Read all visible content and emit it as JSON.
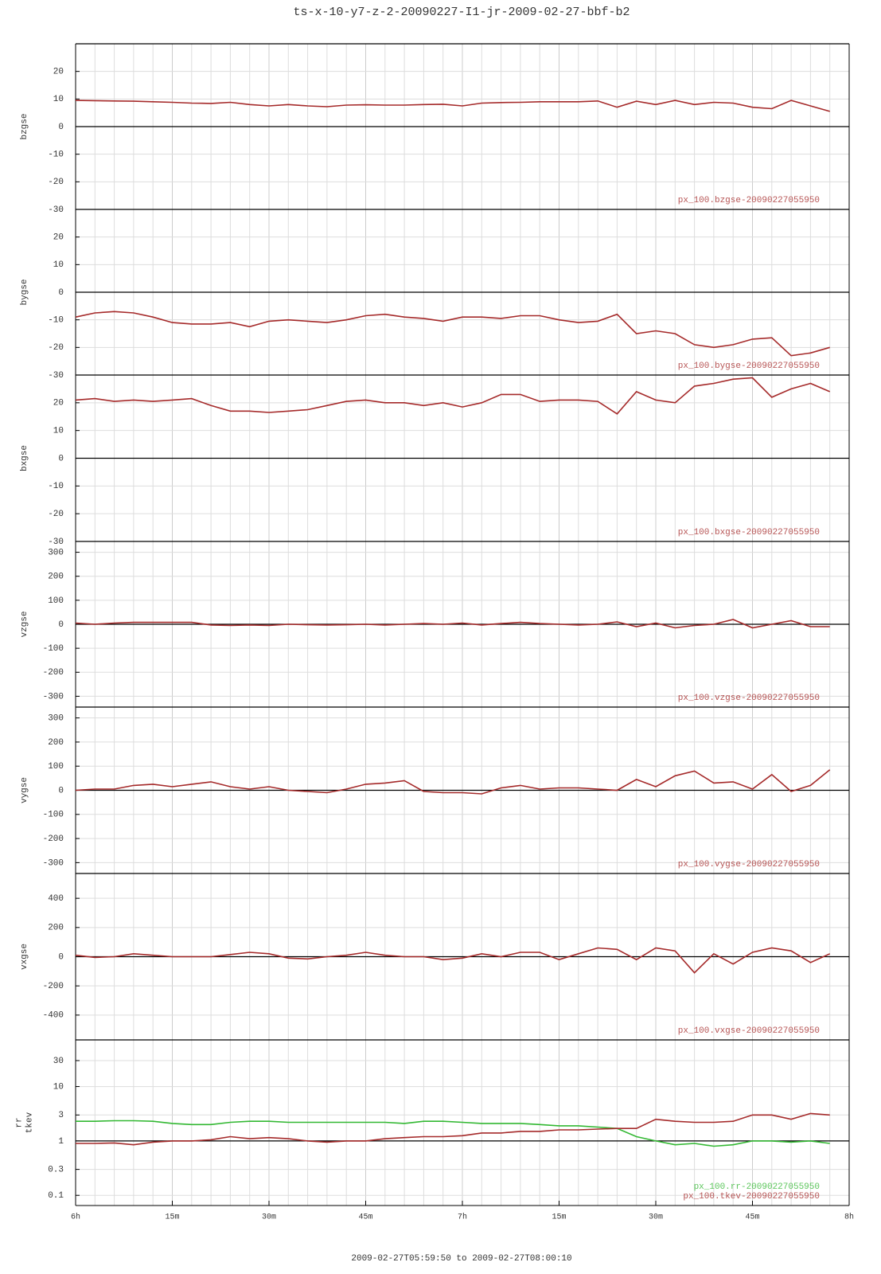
{
  "title": "ts-x-10-y7-z-2-20090227-I1-jr-2009-02-27-bbf-b2",
  "chart_data": [
    {
      "type": "line",
      "ylabel": "bzgse",
      "xlim": [
        0,
        120
      ],
      "ylim": [
        -30,
        30
      ],
      "yticks": [
        20,
        10,
        0,
        -10,
        -20,
        -30
      ],
      "x": [
        0,
        3,
        6,
        9,
        12,
        15,
        18,
        21,
        24,
        27,
        30,
        33,
        36,
        39,
        42,
        45,
        48,
        51,
        54,
        57,
        60,
        63,
        66,
        69,
        72,
        75,
        78,
        81,
        84,
        87,
        90,
        93,
        96,
        99,
        102,
        105,
        108,
        111,
        114,
        117
      ],
      "series": [
        {
          "name": "px_100.bzgse-20090227055950",
          "color": "#a52a2a",
          "values": [
            9.5,
            9.4,
            9.3,
            9.2,
            9.0,
            8.8,
            8.5,
            8.4,
            8.8,
            8.0,
            7.5,
            8.0,
            7.5,
            7.2,
            7.8,
            7.9,
            7.8,
            7.8,
            8.0,
            8.1,
            7.5,
            8.5,
            8.7,
            8.8,
            9.0,
            9.0,
            9.0,
            9.3,
            7.0,
            9.2,
            8.0,
            9.5,
            8.0,
            8.8,
            8.5,
            7.0,
            6.5,
            9.5,
            7.5,
            5.5
          ]
        }
      ]
    },
    {
      "type": "line",
      "ylabel": "bygse",
      "xlim": [
        0,
        120
      ],
      "ylim": [
        -30,
        30
      ],
      "yticks": [
        20,
        10,
        0,
        -10,
        -20,
        -30
      ],
      "x": [
        0,
        3,
        6,
        9,
        12,
        15,
        18,
        21,
        24,
        27,
        30,
        33,
        36,
        39,
        42,
        45,
        48,
        51,
        54,
        57,
        60,
        63,
        66,
        69,
        72,
        75,
        78,
        81,
        84,
        87,
        90,
        93,
        96,
        99,
        102,
        105,
        108,
        111,
        114,
        117
      ],
      "series": [
        {
          "name": "px_100.bygse-20090227055950",
          "color": "#a52a2a",
          "values": [
            -9,
            -7.5,
            -7,
            -7.5,
            -9,
            -11,
            -11.5,
            -11.5,
            -11,
            -12.5,
            -10.5,
            -10,
            -10.5,
            -11,
            -10,
            -8.5,
            -8,
            -9,
            -9.5,
            -10.5,
            -9,
            -9,
            -9.5,
            -8.5,
            -8.5,
            -10,
            -11,
            -10.5,
            -8,
            -15,
            -14,
            -15,
            -19,
            -20,
            -19,
            -17,
            -16.5,
            -23,
            -22,
            -20
          ]
        }
      ]
    },
    {
      "type": "line",
      "ylabel": "bxgse",
      "xlim": [
        0,
        120
      ],
      "ylim": [
        -30,
        30
      ],
      "yticks": [
        20,
        10,
        0,
        -10,
        -20,
        -30
      ],
      "x": [
        0,
        3,
        6,
        9,
        12,
        15,
        18,
        21,
        24,
        27,
        30,
        33,
        36,
        39,
        42,
        45,
        48,
        51,
        54,
        57,
        60,
        63,
        66,
        69,
        72,
        75,
        78,
        81,
        84,
        87,
        90,
        93,
        96,
        99,
        102,
        105,
        108,
        111,
        114,
        117
      ],
      "series": [
        {
          "name": "px_100.bxgse-20090227055950",
          "color": "#a52a2a",
          "values": [
            21,
            21.5,
            20.5,
            21,
            20.5,
            21,
            21.5,
            19,
            17,
            17,
            16.5,
            17,
            17.5,
            19,
            20.5,
            21,
            20,
            20,
            19,
            20,
            18.5,
            20,
            23,
            23,
            20.5,
            21,
            21,
            20.5,
            16,
            24,
            21,
            20,
            26,
            27,
            28.5,
            29,
            22,
            25,
            27,
            24
          ]
        }
      ]
    },
    {
      "type": "line",
      "ylabel": "vzgse",
      "xlim": [
        0,
        120
      ],
      "ylim": [
        -345,
        345
      ],
      "yticks": [
        300,
        200,
        100,
        0,
        -100,
        -200,
        -300
      ],
      "x": [
        0,
        3,
        6,
        9,
        12,
        15,
        18,
        21,
        24,
        27,
        30,
        33,
        36,
        39,
        42,
        45,
        48,
        51,
        54,
        57,
        60,
        63,
        66,
        69,
        72,
        75,
        78,
        81,
        84,
        87,
        90,
        93,
        96,
        99,
        102,
        105,
        108,
        111,
        114,
        117
      ],
      "series": [
        {
          "name": "px_100.vzgse-20090227055950",
          "color": "#a52a2a",
          "values": [
            5,
            0,
            5,
            8,
            8,
            8,
            8,
            -3,
            -5,
            -3,
            -5,
            0,
            -2,
            -3,
            -2,
            0,
            -3,
            0,
            3,
            0,
            5,
            -3,
            3,
            8,
            3,
            0,
            -3,
            0,
            10,
            -10,
            5,
            -15,
            -5,
            0,
            20,
            -15,
            0,
            15,
            -10,
            -10
          ]
        }
      ]
    },
    {
      "type": "line",
      "ylabel": "vygse",
      "xlim": [
        0,
        120
      ],
      "ylim": [
        -345,
        345
      ],
      "yticks": [
        300,
        200,
        100,
        0,
        -100,
        -200,
        -300
      ],
      "x": [
        0,
        3,
        6,
        9,
        12,
        15,
        18,
        21,
        24,
        27,
        30,
        33,
        36,
        39,
        42,
        45,
        48,
        51,
        54,
        57,
        60,
        63,
        66,
        69,
        72,
        75,
        78,
        81,
        84,
        87,
        90,
        93,
        96,
        99,
        102,
        105,
        108,
        111,
        114,
        117
      ],
      "series": [
        {
          "name": "px_100.vygse-20090227055950",
          "color": "#a52a2a",
          "values": [
            0,
            5,
            5,
            20,
            25,
            15,
            25,
            35,
            15,
            5,
            15,
            0,
            -5,
            -10,
            5,
            25,
            30,
            40,
            -5,
            -10,
            -10,
            -15,
            10,
            20,
            5,
            10,
            10,
            5,
            0,
            45,
            15,
            60,
            80,
            30,
            35,
            5,
            65,
            -5,
            20,
            85
          ]
        }
      ]
    },
    {
      "type": "line",
      "ylabel": "vxgse",
      "xlim": [
        0,
        120
      ],
      "ylim": [
        -570,
        570
      ],
      "yticks": [
        400,
        200,
        0,
        -200,
        -400
      ],
      "x": [
        0,
        3,
        6,
        9,
        12,
        15,
        18,
        21,
        24,
        27,
        30,
        33,
        36,
        39,
        42,
        45,
        48,
        51,
        54,
        57,
        60,
        63,
        66,
        69,
        72,
        75,
        78,
        81,
        84,
        87,
        90,
        93,
        96,
        99,
        102,
        105,
        108,
        111,
        114,
        117
      ],
      "series": [
        {
          "name": "px_100.vxgse-20090227055950",
          "color": "#a52a2a",
          "values": [
            10,
            -5,
            0,
            20,
            10,
            0,
            0,
            0,
            15,
            30,
            20,
            -10,
            -15,
            0,
            10,
            30,
            10,
            0,
            0,
            -20,
            -10,
            20,
            0,
            30,
            30,
            -20,
            20,
            60,
            50,
            -20,
            60,
            40,
            -110,
            20,
            -50,
            30,
            60,
            40,
            -40,
            20
          ]
        }
      ]
    },
    {
      "type": "line",
      "ylabel": [
        "rr",
        "tkev"
      ],
      "log_y": true,
      "xlim": [
        0,
        120
      ],
      "ylim": [
        0.065,
        72
      ],
      "yticks": [
        30,
        10,
        3,
        1,
        0.3,
        0.1
      ],
      "x": [
        0,
        3,
        6,
        9,
        12,
        15,
        18,
        21,
        24,
        27,
        30,
        33,
        36,
        39,
        42,
        45,
        48,
        51,
        54,
        57,
        60,
        63,
        66,
        69,
        72,
        75,
        78,
        81,
        84,
        87,
        90,
        93,
        96,
        99,
        102,
        105,
        108,
        111,
        114,
        117
      ],
      "series": [
        {
          "name": "px_100.rr-20090227055950",
          "color": "#33b833",
          "values": [
            2.3,
            2.3,
            2.35,
            2.35,
            2.3,
            2.1,
            2.0,
            2.0,
            2.2,
            2.3,
            2.3,
            2.2,
            2.2,
            2.2,
            2.2,
            2.2,
            2.2,
            2.1,
            2.3,
            2.3,
            2.2,
            2.1,
            2.1,
            2.1,
            2.0,
            1.9,
            1.9,
            1.8,
            1.7,
            1.2,
            1.0,
            0.85,
            0.9,
            0.8,
            0.85,
            1.0,
            1.0,
            0.95,
            1.0,
            0.9
          ]
        },
        {
          "name": "px_100.tkev-20090227055950",
          "color": "#a52a2a",
          "values": [
            0.9,
            0.9,
            0.92,
            0.85,
            0.95,
            1.0,
            1.0,
            1.05,
            1.2,
            1.1,
            1.15,
            1.1,
            1.0,
            0.95,
            1.0,
            1.0,
            1.1,
            1.15,
            1.2,
            1.2,
            1.25,
            1.4,
            1.4,
            1.5,
            1.5,
            1.6,
            1.6,
            1.65,
            1.7,
            1.7,
            2.5,
            2.3,
            2.2,
            2.2,
            2.3,
            3.0,
            3.0,
            2.5,
            3.2,
            3.0
          ]
        }
      ],
      "xticks": [
        {
          "value": 0,
          "label": "6h"
        },
        {
          "value": 15,
          "label": "15m"
        },
        {
          "value": 30,
          "label": "30m"
        },
        {
          "value": 45,
          "label": "45m"
        },
        {
          "value": 60,
          "label": "7h"
        },
        {
          "value": 75,
          "label": "15m"
        },
        {
          "value": 90,
          "label": "30m"
        },
        {
          "value": 105,
          "label": "45m"
        },
        {
          "value": 120,
          "label": "8h"
        }
      ],
      "xminorticks": [
        3,
        6,
        9,
        12,
        18,
        21,
        24,
        27,
        33,
        36,
        39,
        42,
        48,
        51,
        54,
        57,
        63,
        66,
        69,
        72,
        78,
        81,
        84,
        87,
        93,
        96,
        99,
        102,
        108,
        111,
        114,
        117
      ],
      "xlabel": "2009-02-27T05:59:50 to 2009-02-27T08:00:10"
    }
  ]
}
